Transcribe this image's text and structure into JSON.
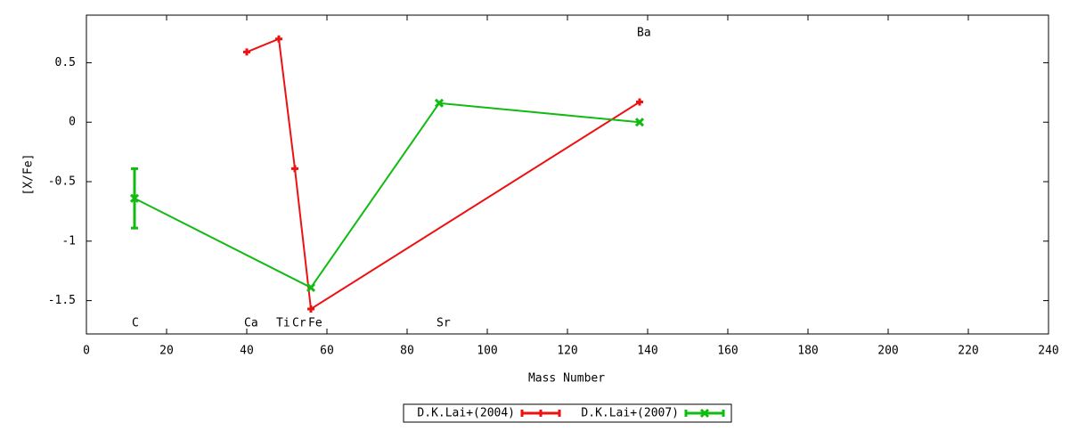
{
  "chart_data": {
    "type": "line",
    "xlabel": "Mass Number",
    "ylabel": "[X/Fe]",
    "xlim": [
      0,
      240
    ],
    "xticks": [
      0,
      20,
      40,
      60,
      80,
      100,
      120,
      140,
      160,
      180,
      200,
      220,
      240
    ],
    "ylim": [
      -1.78,
      0.9
    ],
    "yticks": [
      0.5,
      0,
      -0.5,
      -1,
      -1.5
    ],
    "grid": false,
    "legend": "bottom",
    "series": [
      {
        "name": "D.K.Lai+(2004)",
        "color": "#ee1111",
        "marker": "plus",
        "x": [
          40,
          48,
          52,
          56,
          138
        ],
        "values": [
          0.59,
          0.7,
          -0.39,
          -1.57,
          0.17
        ]
      },
      {
        "name": "D.K.Lai+(2007)",
        "color": "#11bb11",
        "marker": "cross",
        "x": [
          12,
          56,
          88,
          138
        ],
        "values": [
          -0.64,
          -1.39,
          0.16,
          0.0
        ],
        "errors": [
          0.25,
          null,
          null,
          null
        ]
      }
    ],
    "annotations": [
      {
        "text": "C",
        "x": 12,
        "y": -1.69
      },
      {
        "text": "Ca",
        "x": 40,
        "y": -1.69
      },
      {
        "text": "Ti",
        "x": 48,
        "y": -1.69
      },
      {
        "text": "Cr",
        "x": 52,
        "y": -1.69
      },
      {
        "text": "Fe",
        "x": 56,
        "y": -1.69
      },
      {
        "text": "Sr",
        "x": 88,
        "y": -1.69
      },
      {
        "text": "Ba",
        "x": 138,
        "y": 0.75
      }
    ]
  }
}
